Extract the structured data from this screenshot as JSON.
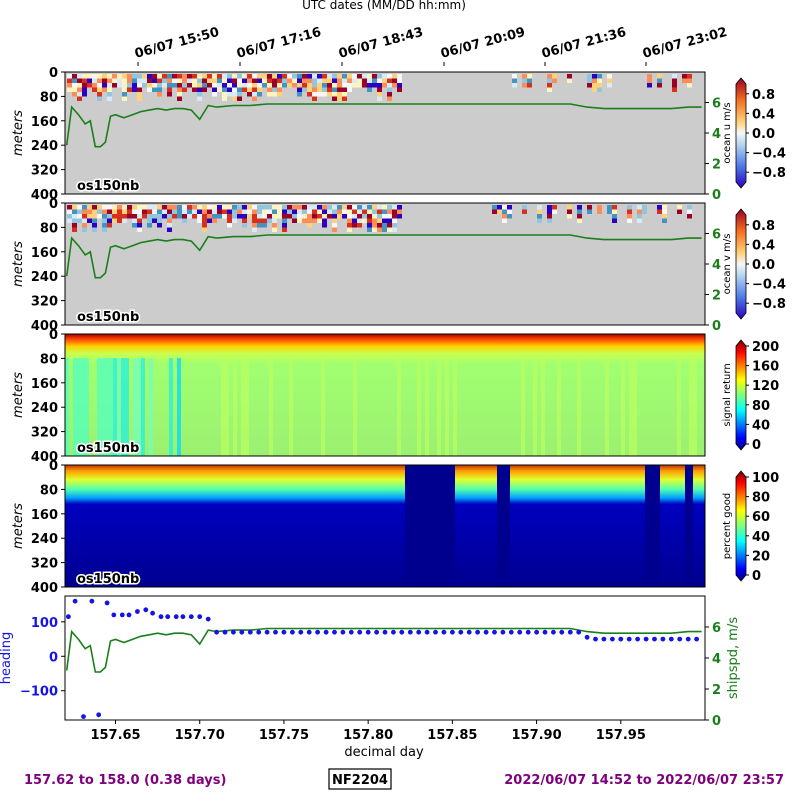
{
  "top_axis": {
    "label": "UTC dates (MM/DD hh:mm)",
    "ticks": [
      "06/07 15:50",
      "06/07 17:16",
      "06/07 18:43",
      "06/07 20:09",
      "06/07 21:36",
      "06/07 23:02"
    ]
  },
  "footer": {
    "left": "157.62 to 158.0 (0.38 days)",
    "center": "NF2204",
    "right": "2022/06/07 14:52 to 2022/06/07 23:57"
  },
  "colors": {
    "shipspd": "#1a7f1a",
    "heading": "#1414e6",
    "footer_text": "#7f007f",
    "nodata": "#cccccc"
  },
  "chart_data": [
    {
      "type": "heatmap",
      "panel_label": "os150nb",
      "ylabel": "meters",
      "yticks": [
        "0",
        "80",
        "160",
        "240",
        "320",
        "400"
      ],
      "ylim": [
        400,
        0
      ],
      "colorbar_label": "ocean u m/s",
      "colorbar_ticks": [
        "0.8",
        "0.4",
        "0.0",
        "−0.4",
        "−0.8"
      ],
      "colorbar_range": [
        -1,
        1
      ],
      "colormap": "RdBu_r",
      "secondary_axis": {
        "ticks": [
          "6",
          "4",
          "2",
          "0"
        ],
        "ylim": [
          0,
          8
        ]
      }
    },
    {
      "type": "heatmap",
      "panel_label": "os150nb",
      "ylabel": "meters",
      "yticks": [
        "0",
        "80",
        "160",
        "240",
        "320",
        "400"
      ],
      "ylim": [
        400,
        0
      ],
      "colorbar_label": "ocean v m/s",
      "colorbar_ticks": [
        "0.8",
        "0.4",
        "0.0",
        "−0.4",
        "−0.8"
      ],
      "colorbar_range": [
        -1,
        1
      ],
      "colormap": "RdBu_r",
      "secondary_axis": {
        "ticks": [
          "6",
          "4",
          "2",
          "0"
        ],
        "ylim": [
          0,
          8
        ]
      }
    },
    {
      "type": "heatmap",
      "panel_label": "os150nb",
      "ylabel": "meters",
      "yticks": [
        "0",
        "80",
        "160",
        "240",
        "320",
        "400"
      ],
      "ylim": [
        400,
        0
      ],
      "colorbar_label": "signal return",
      "colorbar_ticks": [
        "200",
        "160",
        "120",
        "80",
        "40",
        "0"
      ],
      "colorbar_range": [
        0,
        200
      ],
      "colormap": "jet"
    },
    {
      "type": "heatmap",
      "panel_label": "os150nb",
      "ylabel": "meters",
      "yticks": [
        "0",
        "80",
        "160",
        "240",
        "320",
        "400"
      ],
      "ylim": [
        400,
        0
      ],
      "colorbar_label": "percent good",
      "colorbar_ticks": [
        "100",
        "80",
        "60",
        "40",
        "20",
        "0"
      ],
      "colorbar_range": [
        0,
        100
      ],
      "colormap": "jet"
    },
    {
      "type": "scatter",
      "xlabel": "decimal day",
      "xticks": [
        "157.65",
        "157.70",
        "157.75",
        "157.80",
        "157.85",
        "157.90",
        "157.95"
      ],
      "xlim": [
        157.62,
        158.0
      ],
      "ylabel": "heading",
      "yticks": [
        "100",
        "0",
        "−100"
      ],
      "ylim": [
        -185,
        175
      ],
      "ylabel2": "shipspd, m/s",
      "y2ticks": [
        "6",
        "4",
        "2",
        "0"
      ],
      "y2lim": [
        0,
        8
      ],
      "heading_x": [
        157.622,
        157.626,
        157.631,
        157.636,
        157.64,
        157.645,
        157.649,
        157.654,
        157.658,
        157.663,
        157.668,
        157.672,
        157.677,
        157.681,
        157.686,
        157.69,
        157.695,
        157.7,
        157.705,
        157.71,
        157.715,
        157.72,
        157.725,
        157.73,
        157.735,
        157.74,
        157.745,
        157.75,
        157.755,
        157.76,
        157.765,
        157.77,
        157.775,
        157.78,
        157.785,
        157.79,
        157.795,
        157.8,
        157.805,
        157.81,
        157.815,
        157.82,
        157.825,
        157.83,
        157.835,
        157.84,
        157.845,
        157.85,
        157.855,
        157.86,
        157.865,
        157.87,
        157.875,
        157.88,
        157.885,
        157.89,
        157.895,
        157.9,
        157.905,
        157.91,
        157.915,
        157.92,
        157.925,
        157.93,
        157.935,
        157.94,
        157.945,
        157.95,
        157.955,
        157.96,
        157.965,
        157.97,
        157.975,
        157.98,
        157.985,
        157.99,
        157.995
      ],
      "heading": [
        115,
        160,
        -175,
        160,
        -170,
        155,
        120,
        120,
        120,
        130,
        135,
        125,
        115,
        115,
        115,
        115,
        115,
        115,
        108,
        70,
        70,
        70,
        70,
        70,
        70,
        70,
        70,
        70,
        70,
        70,
        70,
        70,
        70,
        70,
        70,
        70,
        70,
        70,
        70,
        70,
        70,
        70,
        70,
        70,
        70,
        70,
        70,
        70,
        70,
        70,
        70,
        70,
        70,
        70,
        70,
        70,
        70,
        70,
        70,
        70,
        70,
        70,
        70,
        55,
        50,
        50,
        50,
        50,
        50,
        50,
        50,
        50,
        50,
        50,
        50,
        50,
        50
      ],
      "shipspd_x": [
        157.621,
        157.624,
        157.628,
        157.632,
        157.635,
        157.638,
        157.641,
        157.644,
        157.647,
        157.65,
        157.655,
        157.66,
        157.665,
        157.67,
        157.675,
        157.68,
        157.685,
        157.69,
        157.695,
        157.7,
        157.705,
        157.71,
        157.72,
        157.73,
        157.74,
        157.75,
        157.76,
        157.77,
        157.78,
        157.79,
        157.8,
        157.81,
        157.82,
        157.83,
        157.84,
        157.85,
        157.86,
        157.87,
        157.88,
        157.89,
        157.9,
        157.91,
        157.92,
        157.93,
        157.94,
        157.95,
        157.96,
        157.97,
        157.98,
        157.99,
        157.998
      ],
      "shipspd": [
        3.2,
        5.7,
        5.2,
        4.6,
        4.8,
        3.1,
        3.1,
        3.4,
        5.1,
        5.2,
        5.0,
        5.2,
        5.4,
        5.5,
        5.6,
        5.5,
        5.6,
        5.6,
        5.5,
        4.9,
        5.8,
        5.7,
        5.8,
        5.8,
        5.9,
        5.9,
        5.9,
        5.9,
        5.9,
        5.9,
        5.9,
        5.9,
        5.9,
        5.9,
        5.9,
        5.9,
        5.9,
        5.9,
        5.9,
        5.9,
        5.9,
        5.9,
        5.9,
        5.7,
        5.6,
        5.6,
        5.6,
        5.6,
        5.6,
        5.7,
        5.7
      ]
    }
  ]
}
